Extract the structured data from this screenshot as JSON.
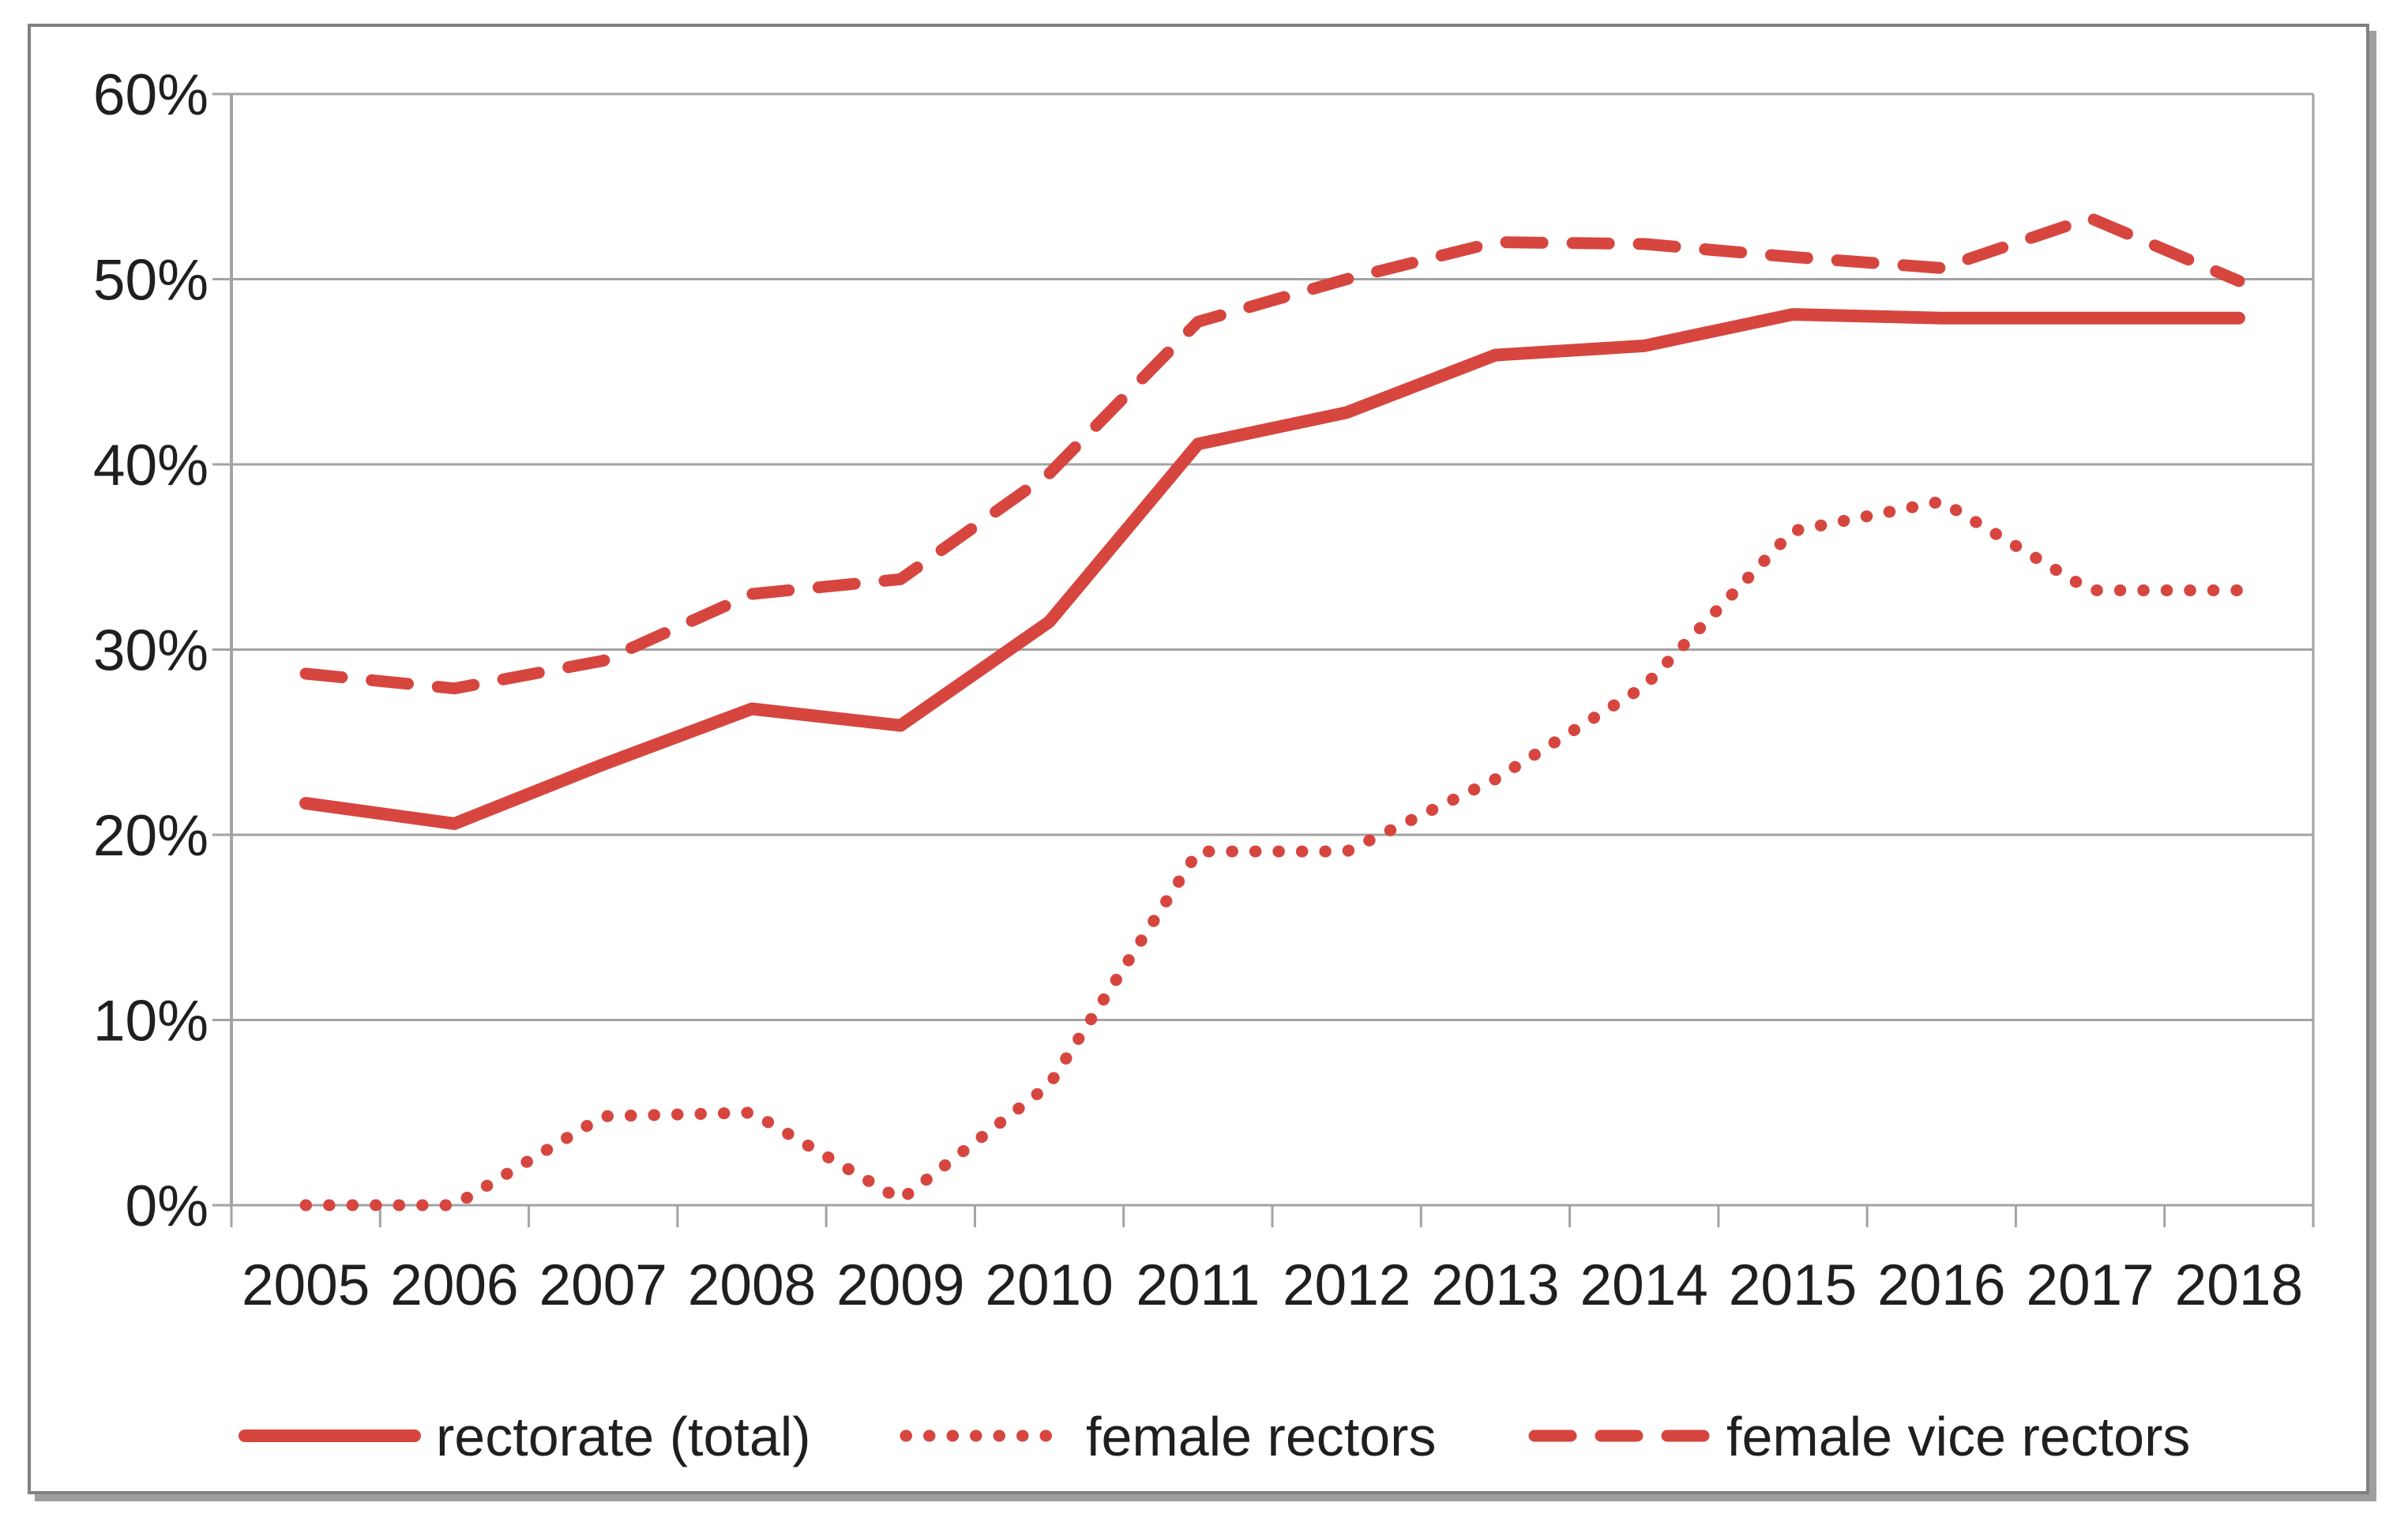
{
  "chart_data": {
    "type": "line",
    "title": "",
    "xlabel": "",
    "ylabel": "",
    "categories": [
      "2005",
      "2006",
      "2007",
      "2008",
      "2009",
      "2010",
      "2011",
      "2012",
      "2013",
      "2014",
      "2015",
      "2016",
      "2017",
      "2018"
    ],
    "series": [
      {
        "name": "rectorate (total)",
        "line_style": "solid",
        "values": [
          21.7,
          20.6,
          23.8,
          26.8,
          25.9,
          31.5,
          41.1,
          42.8,
          45.9,
          46.4,
          48.1,
          47.9,
          47.9,
          47.9
        ]
      },
      {
        "name": "female rectors",
        "line_style": "dotted",
        "values": [
          0.0,
          0.0,
          4.8,
          5.0,
          0.3,
          6.5,
          19.1,
          19.1,
          23.0,
          28.0,
          36.4,
          38.0,
          33.2,
          33.2
        ]
      },
      {
        "name": "female vice rectors",
        "line_style": "dashed",
        "values": [
          28.7,
          27.9,
          29.4,
          33.0,
          33.8,
          39.5,
          47.7,
          50.0,
          52.0,
          51.9,
          51.2,
          50.6,
          53.3,
          49.9
        ]
      }
    ],
    "ylim": [
      0,
      60
    ],
    "ytick_step": 10,
    "ytick_labels": [
      "0%",
      "10%",
      "20%",
      "30%",
      "40%",
      "50%",
      "60%"
    ],
    "grid": true,
    "legend_position": "bottom"
  },
  "legend": {
    "items": [
      {
        "label": "rectorate (total)",
        "line_style": "solid"
      },
      {
        "label": "female rectors",
        "line_style": "dotted"
      },
      {
        "label": "female vice rectors",
        "line_style": "dashed"
      }
    ]
  },
  "colors": {
    "series_red": "#D6463F",
    "gridline": "#A3A3A3",
    "axis": "#A3A3A3",
    "text": "#1F1F1F",
    "frame_border": "#808080",
    "frame_shadow": "#9E9E9E",
    "background": "#FFFFFF"
  }
}
